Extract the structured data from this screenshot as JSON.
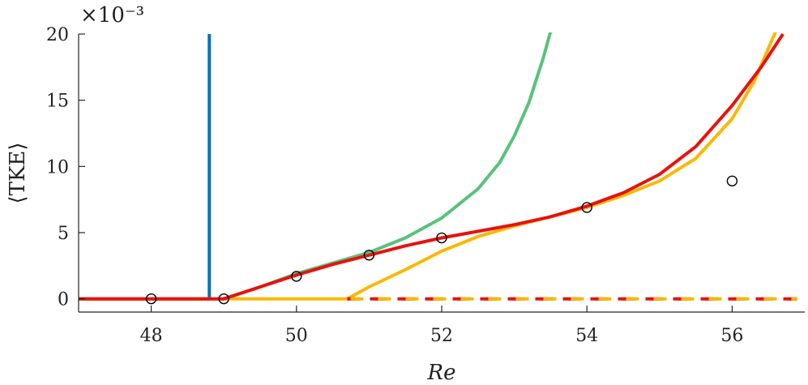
{
  "chart_data": {
    "type": "line",
    "title": "",
    "xlabel": "Re",
    "ylabel": "⟨TKE⟩",
    "y_exponent_label": "×10⁻³",
    "xlim": [
      47,
      57
    ],
    "ylim": [
      -1,
      20
    ],
    "xticks": [
      48,
      50,
      52,
      54,
      56
    ],
    "yticks": [
      0,
      5,
      10,
      15,
      20
    ],
    "grid": false,
    "series": [
      {
        "name": "blue",
        "color": "#0072BD",
        "style": "solid",
        "x": [
          47.0,
          48.8,
          48.8,
          48.8
        ],
        "y": [
          0,
          0,
          0,
          20
        ]
      },
      {
        "name": "green",
        "color": "#58C27A",
        "style": "solid",
        "x": [
          49.0,
          49.5,
          50.0,
          50.5,
          51.0,
          51.5,
          52.0,
          52.5,
          52.8,
          53.0,
          53.2,
          53.4,
          53.5
        ],
        "y": [
          0,
          0.9,
          1.9,
          2.7,
          3.5,
          4.6,
          6.1,
          8.3,
          10.3,
          12.3,
          14.8,
          18.2,
          20.2
        ]
      },
      {
        "name": "yellow",
        "color": "#F9B806",
        "style": "solid",
        "x": [
          47.0,
          50.7,
          51.0,
          51.5,
          52.0,
          52.5,
          53.0,
          53.5,
          54.0,
          54.5,
          55.0,
          55.5,
          56.0,
          56.3,
          56.6
        ],
        "y": [
          0,
          0,
          0.9,
          2.2,
          3.6,
          4.7,
          5.5,
          6.2,
          6.9,
          7.8,
          8.9,
          10.6,
          13.6,
          16.4,
          20.2
        ]
      },
      {
        "name": "red",
        "color": "#E8120C",
        "style": "solid",
        "x": [
          47.0,
          49.0,
          49.5,
          50.0,
          50.5,
          51.0,
          51.5,
          52.0,
          52.5,
          53.0,
          53.5,
          54.0,
          54.5,
          55.0,
          55.5,
          56.0,
          56.4,
          56.7
        ],
        "y": [
          0,
          0,
          0.9,
          1.8,
          2.6,
          3.3,
          4.0,
          4.6,
          5.1,
          5.6,
          6.2,
          7.0,
          8.0,
          9.4,
          11.5,
          14.6,
          17.5,
          20.0
        ]
      },
      {
        "name": "dashed-baseline",
        "color": "#F9B806",
        "style": "dashed",
        "x": [
          50.7,
          56.9
        ],
        "y": [
          0,
          0
        ]
      },
      {
        "name": "markers",
        "color": "#000000",
        "style": "marker",
        "x": [
          48,
          49,
          50,
          51,
          52,
          54,
          56
        ],
        "y": [
          0,
          0,
          1.7,
          3.3,
          4.6,
          6.9,
          8.9
        ]
      }
    ]
  }
}
